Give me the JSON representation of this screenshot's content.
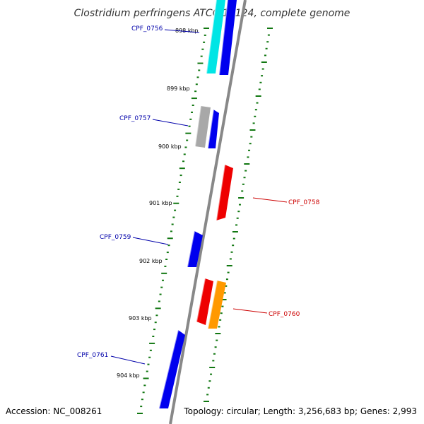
{
  "title": "Clostridium perfringens ATCC 13124, complete genome",
  "footer": {
    "accession": "Accession: NC_008261",
    "summary": "Topology: circular; Length: 3,256,683 bp; Genes: 2,993"
  },
  "colors": {
    "forward_cds": "#0000ee",
    "reverse_cds": "#ee0000",
    "highlight_cds": "#00e5e5",
    "orange_cds": "#ff9900",
    "gray_cds": "#a8a8a8",
    "backbone": "#888888",
    "tick": "#117711",
    "forward_label": "#0000aa",
    "reverse_label": "#cc0000"
  },
  "ticks": [
    {
      "label": "898 kbp"
    },
    {
      "label": "899 kbp"
    },
    {
      "label": "900 kbp"
    },
    {
      "label": "901 kbp"
    },
    {
      "label": "902 kbp"
    },
    {
      "label": "903 kbp"
    },
    {
      "label": "904 kbp"
    }
  ],
  "genes": [
    {
      "label": "CPF_0756",
      "strand": "forward"
    },
    {
      "label": "CPF_0757",
      "strand": "forward"
    },
    {
      "label": "CPF_0758",
      "strand": "reverse"
    },
    {
      "label": "CPF_0759",
      "strand": "forward"
    },
    {
      "label": "CPF_0760",
      "strand": "reverse"
    },
    {
      "label": "CPF_0761",
      "strand": "forward"
    }
  ]
}
